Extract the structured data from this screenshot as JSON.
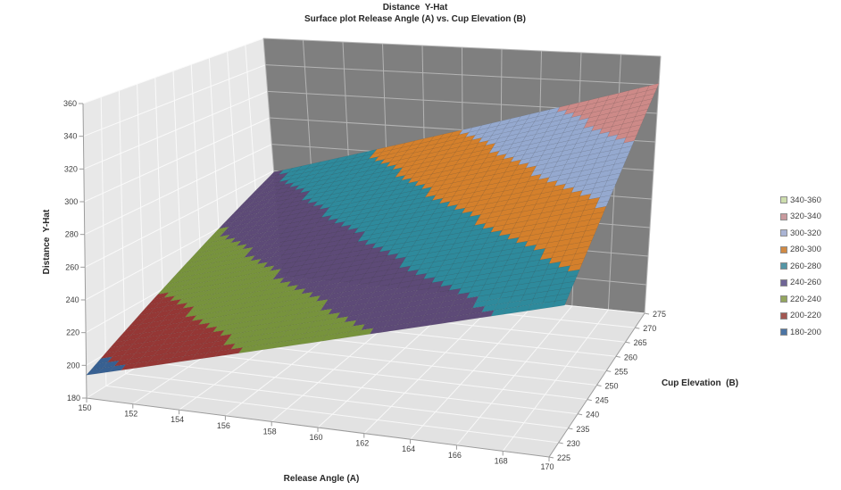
{
  "title": {
    "line1": "Distance  Y-Hat",
    "line2": "Surface plot Release Angle (A) vs. Cup Elevation (B)"
  },
  "chart_data": {
    "type": "surface",
    "title": "Distance  Y-Hat",
    "subtitle": "Surface plot Release Angle (A) vs. Cup Elevation (B)",
    "xlabel": "Release Angle (A)",
    "ylabel": "Distance  Y-Hat",
    "depth_label": "Cup Elevation  (B)",
    "x": [
      150,
      152,
      154,
      156,
      158,
      160,
      162,
      164,
      166,
      168,
      170
    ],
    "depth": [
      225,
      230,
      235,
      240,
      245,
      250,
      255,
      260,
      265,
      270,
      275
    ],
    "ylim": [
      180,
      360
    ],
    "y_tick_step": 20,
    "values": [
      [
        194.0,
        201.6,
        209.2,
        216.8,
        224.4,
        232.0,
        239.6,
        247.2,
        254.8,
        262.4,
        270.0
      ],
      [
        200.5,
        208.2,
        215.8,
        223.5,
        231.1,
        238.8,
        246.5,
        254.1,
        261.8,
        269.4,
        277.1
      ],
      [
        207.0,
        214.7,
        222.4,
        230.2,
        237.9,
        245.6,
        253.3,
        261.0,
        268.8,
        276.5,
        284.2
      ],
      [
        213.5,
        221.3,
        229.1,
        236.8,
        244.6,
        252.4,
        260.2,
        268.0,
        275.7,
        283.5,
        291.3
      ],
      [
        220.0,
        227.8,
        235.7,
        243.5,
        251.4,
        259.2,
        267.0,
        274.9,
        282.7,
        290.6,
        298.4
      ],
      [
        226.5,
        234.4,
        242.3,
        250.2,
        258.1,
        266.0,
        273.9,
        281.8,
        289.7,
        297.6,
        305.5
      ],
      [
        233.0,
        241.0,
        248.9,
        256.9,
        264.8,
        272.8,
        280.8,
        288.7,
        296.7,
        304.6,
        312.6
      ],
      [
        239.5,
        247.5,
        255.5,
        263.6,
        271.6,
        279.6,
        287.6,
        295.6,
        303.7,
        311.7,
        319.7
      ],
      [
        246.0,
        254.1,
        262.2,
        270.2,
        278.3,
        286.4,
        294.5,
        302.6,
        310.6,
        318.7,
        326.8
      ],
      [
        252.5,
        260.6,
        268.8,
        276.9,
        285.1,
        293.2,
        301.3,
        309.5,
        317.6,
        325.8,
        333.9
      ],
      [
        259.0,
        267.2,
        275.4,
        283.6,
        291.8,
        300.0,
        308.2,
        316.4,
        324.6,
        332.8,
        341.0
      ]
    ],
    "bands": [
      {
        "label": "180-200",
        "color": "#376092",
        "legend_color": "#4C74A4"
      },
      {
        "label": "200-220",
        "color": "#953735",
        "legend_color": "#A25752"
      },
      {
        "label": "220-240",
        "color": "#77933C",
        "legend_color": "#94A65F"
      },
      {
        "label": "240-260",
        "color": "#5D4A77",
        "legend_color": "#6F6596"
      },
      {
        "label": "260-280",
        "color": "#2E8A9C",
        "legend_color": "#5496A6"
      },
      {
        "label": "280-300",
        "color": "#D4802C",
        "legend_color": "#D08A45"
      },
      {
        "label": "300-320",
        "color": "#95A9CF",
        "legend_color": "#AAB4D4"
      },
      {
        "label": "320-340",
        "color": "#CD8A88",
        "legend_color": "#C99A9E"
      },
      {
        "label": "340-360",
        "color": "#C3D69B",
        "legend_color": "#CDDDAD"
      }
    ],
    "legend_position": "right",
    "grid": true
  },
  "colors": {
    "background": "#ffffff",
    "wall_side": "#e8e8e8",
    "wall_side_grid": "#fafafa",
    "wall_back": "#7f7f7f",
    "wall_back_grid": "#b4b4b4",
    "floor": "#e2e2e2",
    "floor_grid": "#f8f8f8",
    "axis_line": "#9b9b9b",
    "text": "#3f3f3f",
    "title_text": "#262626",
    "mesh_line": "rgba(0,0,0,0.10)"
  }
}
